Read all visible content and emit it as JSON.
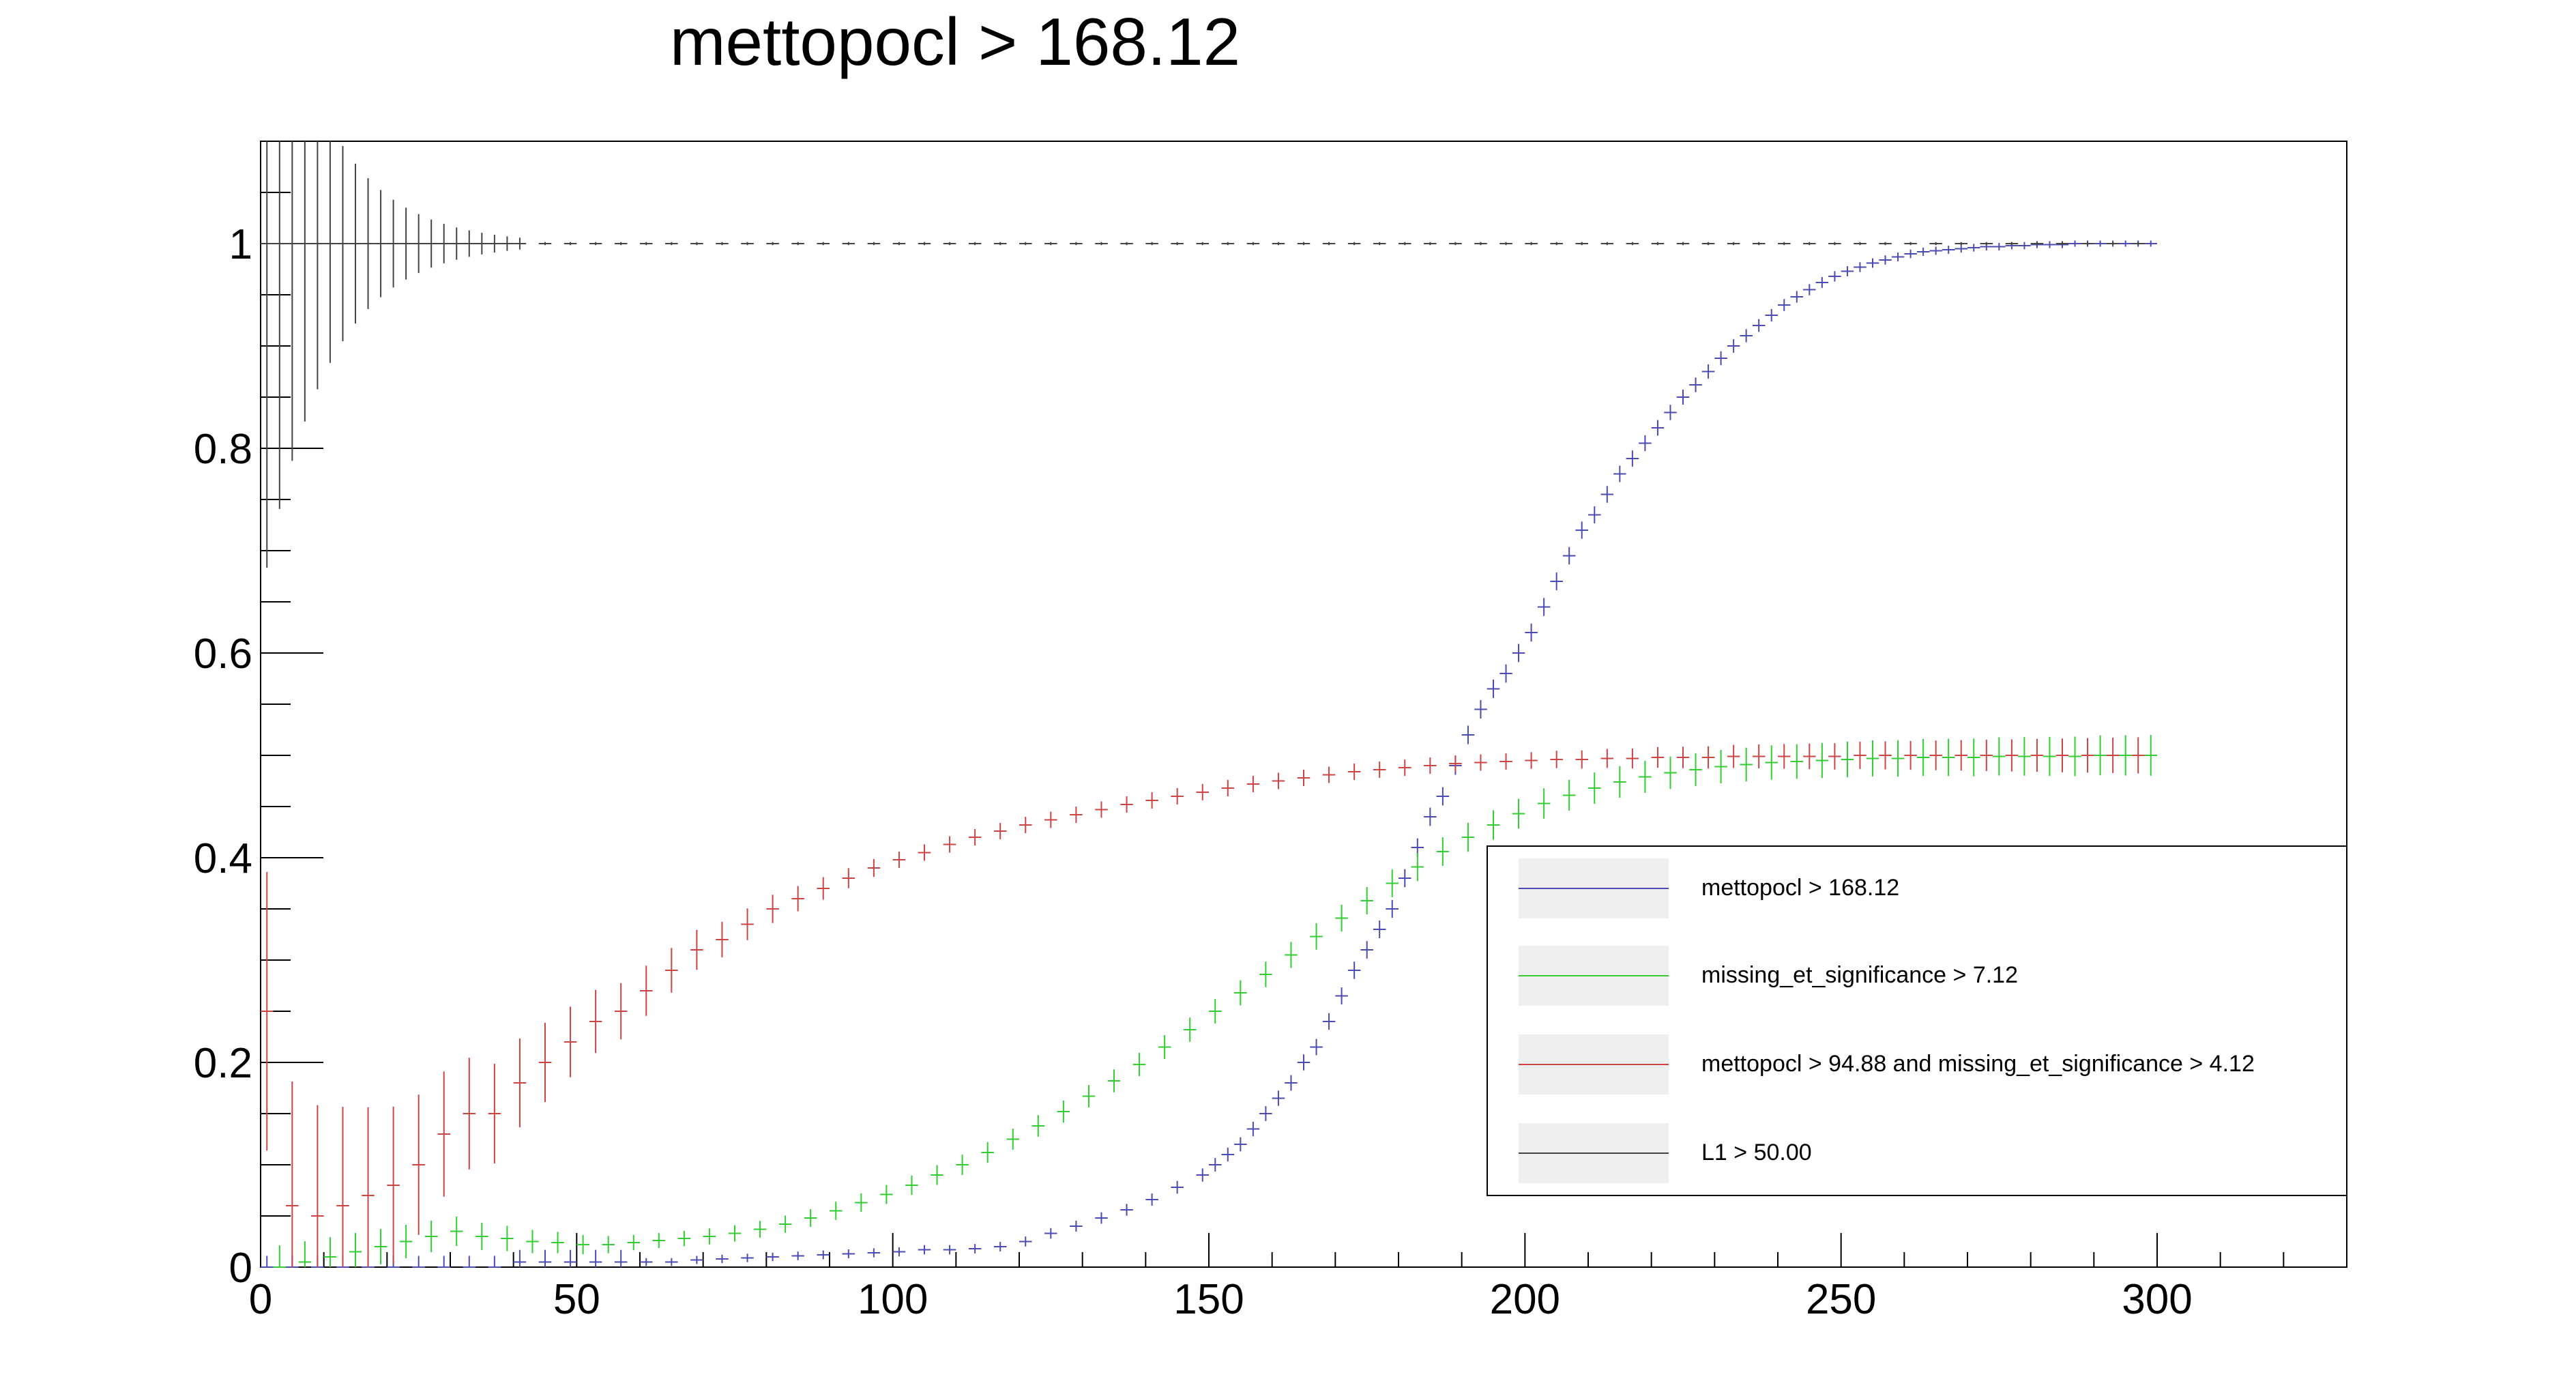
{
  "chart_data": {
    "type": "scatter",
    "title": "mettopocl >  168.12",
    "xlabel": "",
    "ylabel": "",
    "xlim": [
      0,
      330
    ],
    "ylim": [
      0,
      1.1
    ],
    "x_ticks": [
      0,
      50,
      100,
      150,
      200,
      250,
      300
    ],
    "y_ticks": [
      0,
      0.2,
      0.4,
      0.6,
      0.8,
      1
    ],
    "x_tick_labels": [
      "0",
      "50",
      "100",
      "150",
      "200",
      "250",
      "300"
    ],
    "y_tick_labels": [
      "0",
      "0.2",
      "0.4",
      "0.6",
      "0.8",
      "1"
    ],
    "grid": false,
    "legend_position": "bottom-right",
    "error_bars": true,
    "bin_width": 2,
    "series": [
      {
        "name": "mettopocl >  168.12",
        "color": "#4b4bb2",
        "x": [
          1,
          5,
          9,
          13,
          17,
          21,
          25,
          29,
          33,
          37,
          41,
          45,
          49,
          53,
          57,
          61,
          65,
          69,
          73,
          77,
          81,
          85,
          89,
          93,
          97,
          101,
          105,
          109,
          113,
          117,
          121,
          125,
          129,
          133,
          137,
          141,
          145,
          149,
          151,
          153,
          155,
          157,
          159,
          161,
          163,
          165,
          167,
          169,
          171,
          173,
          175,
          177,
          179,
          181,
          183,
          185,
          187,
          189,
          191,
          193,
          195,
          197,
          199,
          201,
          203,
          205,
          207,
          209,
          211,
          213,
          215,
          217,
          219,
          221,
          223,
          225,
          227,
          229,
          231,
          233,
          235,
          237,
          239,
          241,
          243,
          245,
          247,
          249,
          251,
          253,
          255,
          257,
          259,
          261,
          263,
          265,
          267,
          269,
          271,
          273,
          275,
          277,
          279,
          281,
          283,
          285,
          287,
          289,
          291,
          293,
          295,
          297,
          299
        ],
        "y": [
          0.0,
          0.0,
          0.0,
          0.0,
          0.0,
          0.0,
          0.0,
          0.0,
          0.0,
          0.0,
          0.005,
          0.005,
          0.005,
          0.005,
          0.005,
          0.005,
          0.005,
          0.007,
          0.008,
          0.009,
          0.01,
          0.011,
          0.012,
          0.013,
          0.014,
          0.015,
          0.017,
          0.017,
          0.018,
          0.02,
          0.025,
          0.033,
          0.04,
          0.048,
          0.056,
          0.066,
          0.078,
          0.09,
          0.1,
          0.11,
          0.12,
          0.135,
          0.15,
          0.165,
          0.18,
          0.2,
          0.215,
          0.24,
          0.265,
          0.29,
          0.31,
          0.33,
          0.35,
          0.38,
          0.41,
          0.44,
          0.46,
          0.49,
          0.52,
          0.545,
          0.565,
          0.58,
          0.6,
          0.62,
          0.645,
          0.67,
          0.695,
          0.72,
          0.735,
          0.755,
          0.775,
          0.79,
          0.805,
          0.82,
          0.835,
          0.85,
          0.862,
          0.875,
          0.888,
          0.9,
          0.91,
          0.92,
          0.93,
          0.94,
          0.948,
          0.955,
          0.962,
          0.968,
          0.973,
          0.977,
          0.981,
          0.984,
          0.987,
          0.99,
          0.992,
          0.993,
          0.994,
          0.995,
          0.996,
          0.997,
          0.997,
          0.998,
          0.998,
          0.999,
          0.999,
          0.999,
          1.0,
          1.0,
          1.0,
          1.0,
          1.0,
          1.0,
          1.0
        ]
      },
      {
        "name": "missing_et_significance >  7.12",
        "color": "#33cc33",
        "x": [
          3,
          7,
          11,
          15,
          19,
          23,
          27,
          31,
          35,
          39,
          43,
          47,
          51,
          55,
          59,
          63,
          67,
          71,
          75,
          79,
          83,
          87,
          91,
          95,
          99,
          103,
          107,
          111,
          115,
          119,
          123,
          127,
          131,
          135,
          139,
          143,
          147,
          151,
          155,
          159,
          163,
          167,
          171,
          175,
          179,
          183,
          187,
          191,
          195,
          199,
          203,
          207,
          211,
          215,
          219,
          223,
          227,
          231,
          235,
          239,
          243,
          247,
          251,
          255,
          259,
          263,
          267,
          271,
          275,
          279,
          283,
          287,
          291,
          295,
          299
        ],
        "y": [
          0.0,
          0.005,
          0.01,
          0.015,
          0.02,
          0.025,
          0.03,
          0.035,
          0.03,
          0.028,
          0.025,
          0.024,
          0.022,
          0.022,
          0.024,
          0.026,
          0.028,
          0.03,
          0.033,
          0.037,
          0.042,
          0.048,
          0.055,
          0.063,
          0.071,
          0.08,
          0.09,
          0.1,
          0.112,
          0.125,
          0.138,
          0.152,
          0.167,
          0.182,
          0.198,
          0.215,
          0.232,
          0.25,
          0.268,
          0.286,
          0.305,
          0.323,
          0.341,
          0.358,
          0.375,
          0.391,
          0.406,
          0.42,
          0.432,
          0.443,
          0.453,
          0.461,
          0.468,
          0.474,
          0.479,
          0.483,
          0.486,
          0.489,
          0.491,
          0.493,
          0.494,
          0.495,
          0.496,
          0.497,
          0.497,
          0.498,
          0.498,
          0.498,
          0.499,
          0.499,
          0.499,
          0.499,
          0.5,
          0.5,
          0.5
        ]
      },
      {
        "name": "mettopocl >  94.88 and missing_et_significance >  4.12",
        "color": "#cc4444",
        "x": [
          1,
          5,
          9,
          13,
          17,
          21,
          25,
          29,
          33,
          37,
          41,
          45,
          49,
          53,
          57,
          61,
          65,
          69,
          73,
          77,
          81,
          85,
          89,
          93,
          97,
          101,
          105,
          109,
          113,
          117,
          121,
          125,
          129,
          133,
          137,
          141,
          145,
          149,
          153,
          157,
          161,
          165,
          169,
          173,
          177,
          181,
          185,
          189,
          193,
          197,
          201,
          205,
          209,
          213,
          217,
          221,
          225,
          229,
          233,
          237,
          241,
          245,
          249,
          253,
          257,
          261,
          265,
          269,
          273,
          277,
          281,
          285,
          289,
          293,
          297
        ],
        "y": [
          0.25,
          0.06,
          0.05,
          0.06,
          0.07,
          0.08,
          0.1,
          0.13,
          0.15,
          0.15,
          0.18,
          0.2,
          0.22,
          0.24,
          0.25,
          0.27,
          0.29,
          0.31,
          0.32,
          0.335,
          0.35,
          0.36,
          0.37,
          0.38,
          0.39,
          0.398,
          0.405,
          0.413,
          0.42,
          0.426,
          0.432,
          0.437,
          0.442,
          0.447,
          0.452,
          0.456,
          0.46,
          0.464,
          0.468,
          0.472,
          0.475,
          0.478,
          0.481,
          0.484,
          0.486,
          0.488,
          0.49,
          0.492,
          0.493,
          0.494,
          0.495,
          0.496,
          0.496,
          0.497,
          0.497,
          0.498,
          0.498,
          0.498,
          0.499,
          0.499,
          0.499,
          0.499,
          0.499,
          0.5,
          0.5,
          0.5,
          0.5,
          0.5,
          0.5,
          0.5,
          0.5,
          0.5,
          0.5,
          0.5,
          0.5
        ]
      },
      {
        "name": "L1 >  50.00",
        "color": "#444444",
        "x": [
          1,
          3,
          5,
          7,
          9,
          11,
          13,
          15,
          17,
          19,
          21,
          23,
          25,
          27,
          29,
          31,
          33,
          35,
          37,
          39,
          41,
          45,
          49,
          53,
          57,
          61,
          65,
          69,
          73,
          77,
          81,
          85,
          89,
          93,
          97,
          101,
          105,
          109,
          113,
          117,
          121,
          125,
          129,
          133,
          137,
          141,
          145,
          149,
          153,
          157,
          161,
          165,
          169,
          173,
          177,
          181,
          185,
          189,
          193,
          197,
          201,
          205,
          209,
          213,
          217,
          221,
          225,
          229,
          233,
          237,
          241,
          245,
          249,
          253,
          257,
          261,
          265,
          269,
          273,
          277,
          281,
          285,
          289,
          293,
          297
        ],
        "y": [
          1,
          1,
          1,
          1,
          1,
          1,
          1,
          1,
          1,
          1,
          1,
          1,
          1,
          1,
          1,
          1,
          1,
          1,
          1,
          1,
          1,
          1,
          1,
          1,
          1,
          1,
          1,
          1,
          1,
          1,
          1,
          1,
          1,
          1,
          1,
          1,
          1,
          1,
          1,
          1,
          1,
          1,
          1,
          1,
          1,
          1,
          1,
          1,
          1,
          1,
          1,
          1,
          1,
          1,
          1,
          1,
          1,
          1,
          1,
          1,
          1,
          1,
          1,
          1,
          1,
          1,
          1,
          1,
          1,
          1,
          1,
          1,
          1,
          1,
          1,
          1,
          1,
          1,
          1,
          1,
          1,
          1,
          1,
          1,
          1
        ]
      }
    ]
  }
}
